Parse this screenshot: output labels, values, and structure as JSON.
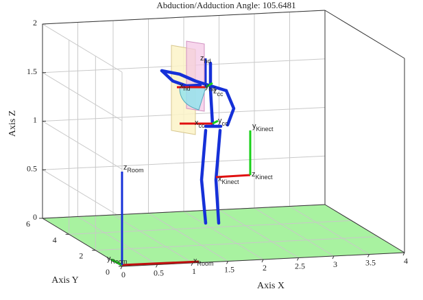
{
  "chart_data": {
    "type": "frames3d",
    "title": "Abduction/Adduction Angle: 105.6481",
    "x_label": "Axis X",
    "y_label": "Axis Y",
    "z_label": "Axis Z",
    "xlim": [
      0,
      4
    ],
    "ylim": [
      0,
      6
    ],
    "zlim": [
      0,
      2
    ],
    "xticks": [
      0,
      0.5,
      1,
      1.5,
      2,
      2.5,
      3,
      3.5,
      4
    ],
    "yticks": [
      0,
      2,
      4,
      6
    ],
    "zticks": [
      0,
      0.5,
      1,
      1.5,
      2
    ],
    "grid": true,
    "floor_color": "#a8f2a0",
    "annotations": [
      {
        "text": "z",
        "sub": "hd"
      },
      {
        "text": "x",
        "sub": "hd"
      },
      {
        "text": "y",
        "sub": "hd"
      },
      {
        "text": "z",
        "sub": "cc"
      },
      {
        "text": "x",
        "sub": "cc"
      },
      {
        "text": "y",
        "sub": "cc"
      },
      {
        "text": "y",
        "sub": "Kinect"
      },
      {
        "text": "x",
        "sub": "Kinect"
      },
      {
        "text": "z",
        "sub": "Kinect"
      },
      {
        "text": "z",
        "sub": "Room"
      },
      {
        "text": "y",
        "sub": "Room"
      },
      {
        "text": "x",
        "sub": "Room"
      }
    ]
  }
}
